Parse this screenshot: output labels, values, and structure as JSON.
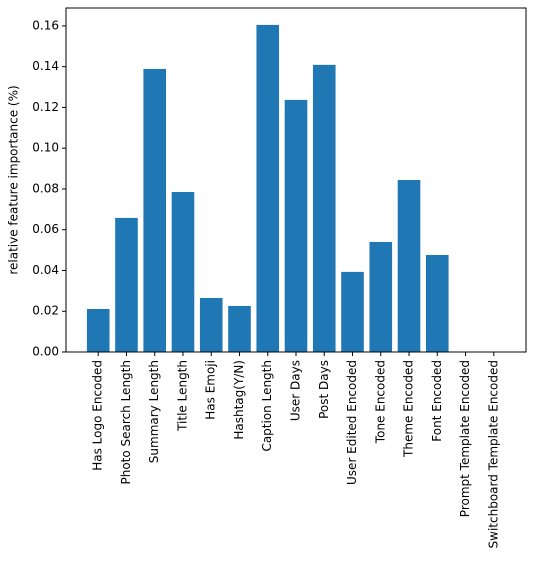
{
  "chart_data": {
    "type": "bar",
    "y_label": "relative feature importance (%)",
    "categories": [
      "Has Logo Encoded",
      "Photo Search Length",
      "Summary Length",
      "Title Length",
      "Has Emoji",
      "Hashtag(Y/N)",
      "Caption Length",
      "User Days",
      "Post Days",
      "User Edited Encoded",
      "Tone Encoded",
      "Theme Encoded",
      "Font Encoded",
      "Prompt Template Encoded",
      "Switchboard Template Encoded"
    ],
    "values": [
      0.0211,
      0.0658,
      0.1389,
      0.0785,
      0.0265,
      0.0226,
      0.1605,
      0.1237,
      0.1409,
      0.0393,
      0.054,
      0.0844,
      0.0476,
      0,
      0
    ],
    "color": "#1f77b4",
    "ylim": [
      0,
      0.1688
    ],
    "yticks": [
      {
        "value": 0,
        "label": "0.00"
      },
      {
        "value": 0.02,
        "label": "0.02"
      },
      {
        "value": 0.04,
        "label": "0.04"
      },
      {
        "value": 0.06,
        "label": "0.06"
      },
      {
        "value": 0.08,
        "label": "0.08"
      },
      {
        "value": 0.1,
        "label": "0.10"
      },
      {
        "value": 0.12,
        "label": "0.12"
      },
      {
        "value": 0.14,
        "label": "0.14"
      },
      {
        "value": 0.16,
        "label": "0.16"
      }
    ],
    "grid": false
  }
}
